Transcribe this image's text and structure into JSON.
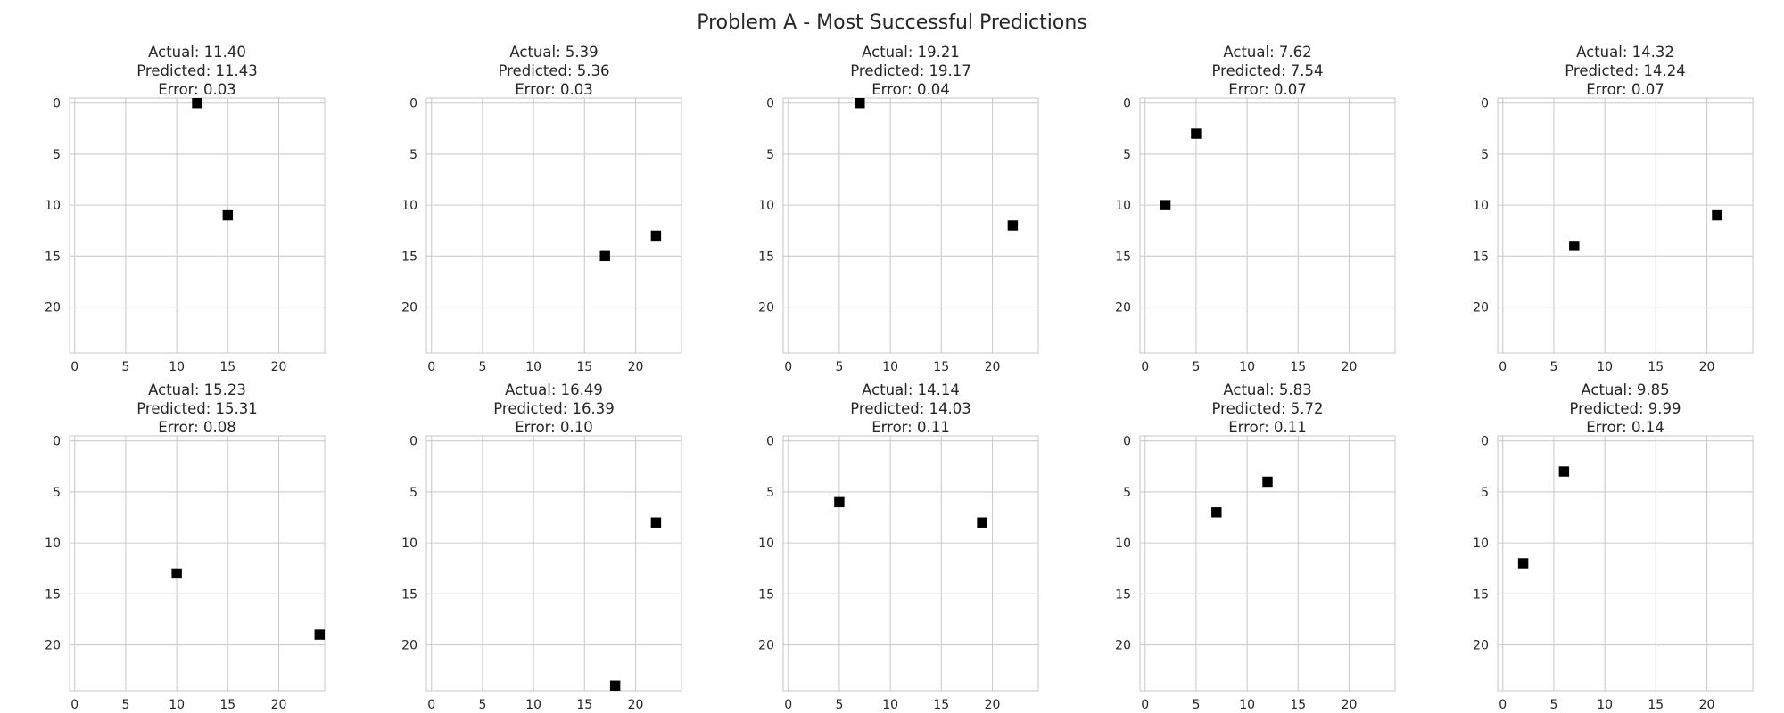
{
  "figure_title": "Problem A - Most Successful Predictions",
  "chart_data": [
    {
      "type": "heatmap",
      "title": [
        "Actual: 11.40",
        "Predicted: 11.43",
        "Error: 0.03"
      ],
      "points": [
        [
          12,
          0
        ],
        [
          15,
          11
        ]
      ],
      "xlim": [
        -0.5,
        24.5
      ],
      "ylim": [
        24.5,
        -0.5
      ],
      "xticks": [
        0,
        5,
        10,
        15,
        20
      ],
      "yticks": [
        0,
        5,
        10,
        15,
        20
      ],
      "grid": true
    },
    {
      "type": "heatmap",
      "title": [
        "Actual: 5.39",
        "Predicted: 5.36",
        "Error: 0.03"
      ],
      "points": [
        [
          17,
          15
        ],
        [
          22,
          13
        ]
      ],
      "xlim": [
        -0.5,
        24.5
      ],
      "ylim": [
        24.5,
        -0.5
      ],
      "xticks": [
        0,
        5,
        10,
        15,
        20
      ],
      "yticks": [
        0,
        5,
        10,
        15,
        20
      ],
      "grid": true
    },
    {
      "type": "heatmap",
      "title": [
        "Actual: 19.21",
        "Predicted: 19.17",
        "Error: 0.04"
      ],
      "points": [
        [
          7,
          0
        ],
        [
          22,
          12
        ]
      ],
      "xlim": [
        -0.5,
        24.5
      ],
      "ylim": [
        24.5,
        -0.5
      ],
      "xticks": [
        0,
        5,
        10,
        15,
        20
      ],
      "yticks": [
        0,
        5,
        10,
        15,
        20
      ],
      "grid": true
    },
    {
      "type": "heatmap",
      "title": [
        "Actual: 7.62",
        "Predicted: 7.54",
        "Error: 0.07"
      ],
      "points": [
        [
          5,
          3
        ],
        [
          2,
          10
        ]
      ],
      "xlim": [
        -0.5,
        24.5
      ],
      "ylim": [
        24.5,
        -0.5
      ],
      "xticks": [
        0,
        5,
        10,
        15,
        20
      ],
      "yticks": [
        0,
        5,
        10,
        15,
        20
      ],
      "grid": true
    },
    {
      "type": "heatmap",
      "title": [
        "Actual: 14.32",
        "Predicted: 14.24",
        "Error: 0.07"
      ],
      "points": [
        [
          7,
          14
        ],
        [
          21,
          11
        ]
      ],
      "xlim": [
        -0.5,
        24.5
      ],
      "ylim": [
        24.5,
        -0.5
      ],
      "xticks": [
        0,
        5,
        10,
        15,
        20
      ],
      "yticks": [
        0,
        5,
        10,
        15,
        20
      ],
      "grid": true
    },
    {
      "type": "heatmap",
      "title": [
        "Actual: 15.23",
        "Predicted: 15.31",
        "Error: 0.08"
      ],
      "points": [
        [
          10,
          13
        ],
        [
          24,
          19
        ]
      ],
      "xlim": [
        -0.5,
        24.5
      ],
      "ylim": [
        24.5,
        -0.5
      ],
      "xticks": [
        0,
        5,
        10,
        15,
        20
      ],
      "yticks": [
        0,
        5,
        10,
        15,
        20
      ],
      "grid": true
    },
    {
      "type": "heatmap",
      "title": [
        "Actual: 16.49",
        "Predicted: 16.39",
        "Error: 0.10"
      ],
      "points": [
        [
          22,
          8
        ],
        [
          18,
          24
        ]
      ],
      "xlim": [
        -0.5,
        24.5
      ],
      "ylim": [
        24.5,
        -0.5
      ],
      "xticks": [
        0,
        5,
        10,
        15,
        20
      ],
      "yticks": [
        0,
        5,
        10,
        15,
        20
      ],
      "grid": true
    },
    {
      "type": "heatmap",
      "title": [
        "Actual: 14.14",
        "Predicted: 14.03",
        "Error: 0.11"
      ],
      "points": [
        [
          5,
          6
        ],
        [
          19,
          8
        ]
      ],
      "xlim": [
        -0.5,
        24.5
      ],
      "ylim": [
        24.5,
        -0.5
      ],
      "xticks": [
        0,
        5,
        10,
        15,
        20
      ],
      "yticks": [
        0,
        5,
        10,
        15,
        20
      ],
      "grid": true
    },
    {
      "type": "heatmap",
      "title": [
        "Actual: 5.83",
        "Predicted: 5.72",
        "Error: 0.11"
      ],
      "points": [
        [
          12,
          4
        ],
        [
          7,
          7
        ]
      ],
      "xlim": [
        -0.5,
        24.5
      ],
      "ylim": [
        24.5,
        -0.5
      ],
      "xticks": [
        0,
        5,
        10,
        15,
        20
      ],
      "yticks": [
        0,
        5,
        10,
        15,
        20
      ],
      "grid": true
    },
    {
      "type": "heatmap",
      "title": [
        "Actual: 9.85",
        "Predicted: 9.99",
        "Error: 0.14"
      ],
      "points": [
        [
          6,
          3
        ],
        [
          2,
          12
        ]
      ],
      "xlim": [
        -0.5,
        24.5
      ],
      "ylim": [
        24.5,
        -0.5
      ],
      "xticks": [
        0,
        5,
        10,
        15,
        20
      ],
      "yticks": [
        0,
        5,
        10,
        15,
        20
      ],
      "grid": true
    }
  ],
  "colors": {
    "point": "#000000",
    "grid": "#cccccc",
    "text": "#262626",
    "background": "#ffffff"
  }
}
